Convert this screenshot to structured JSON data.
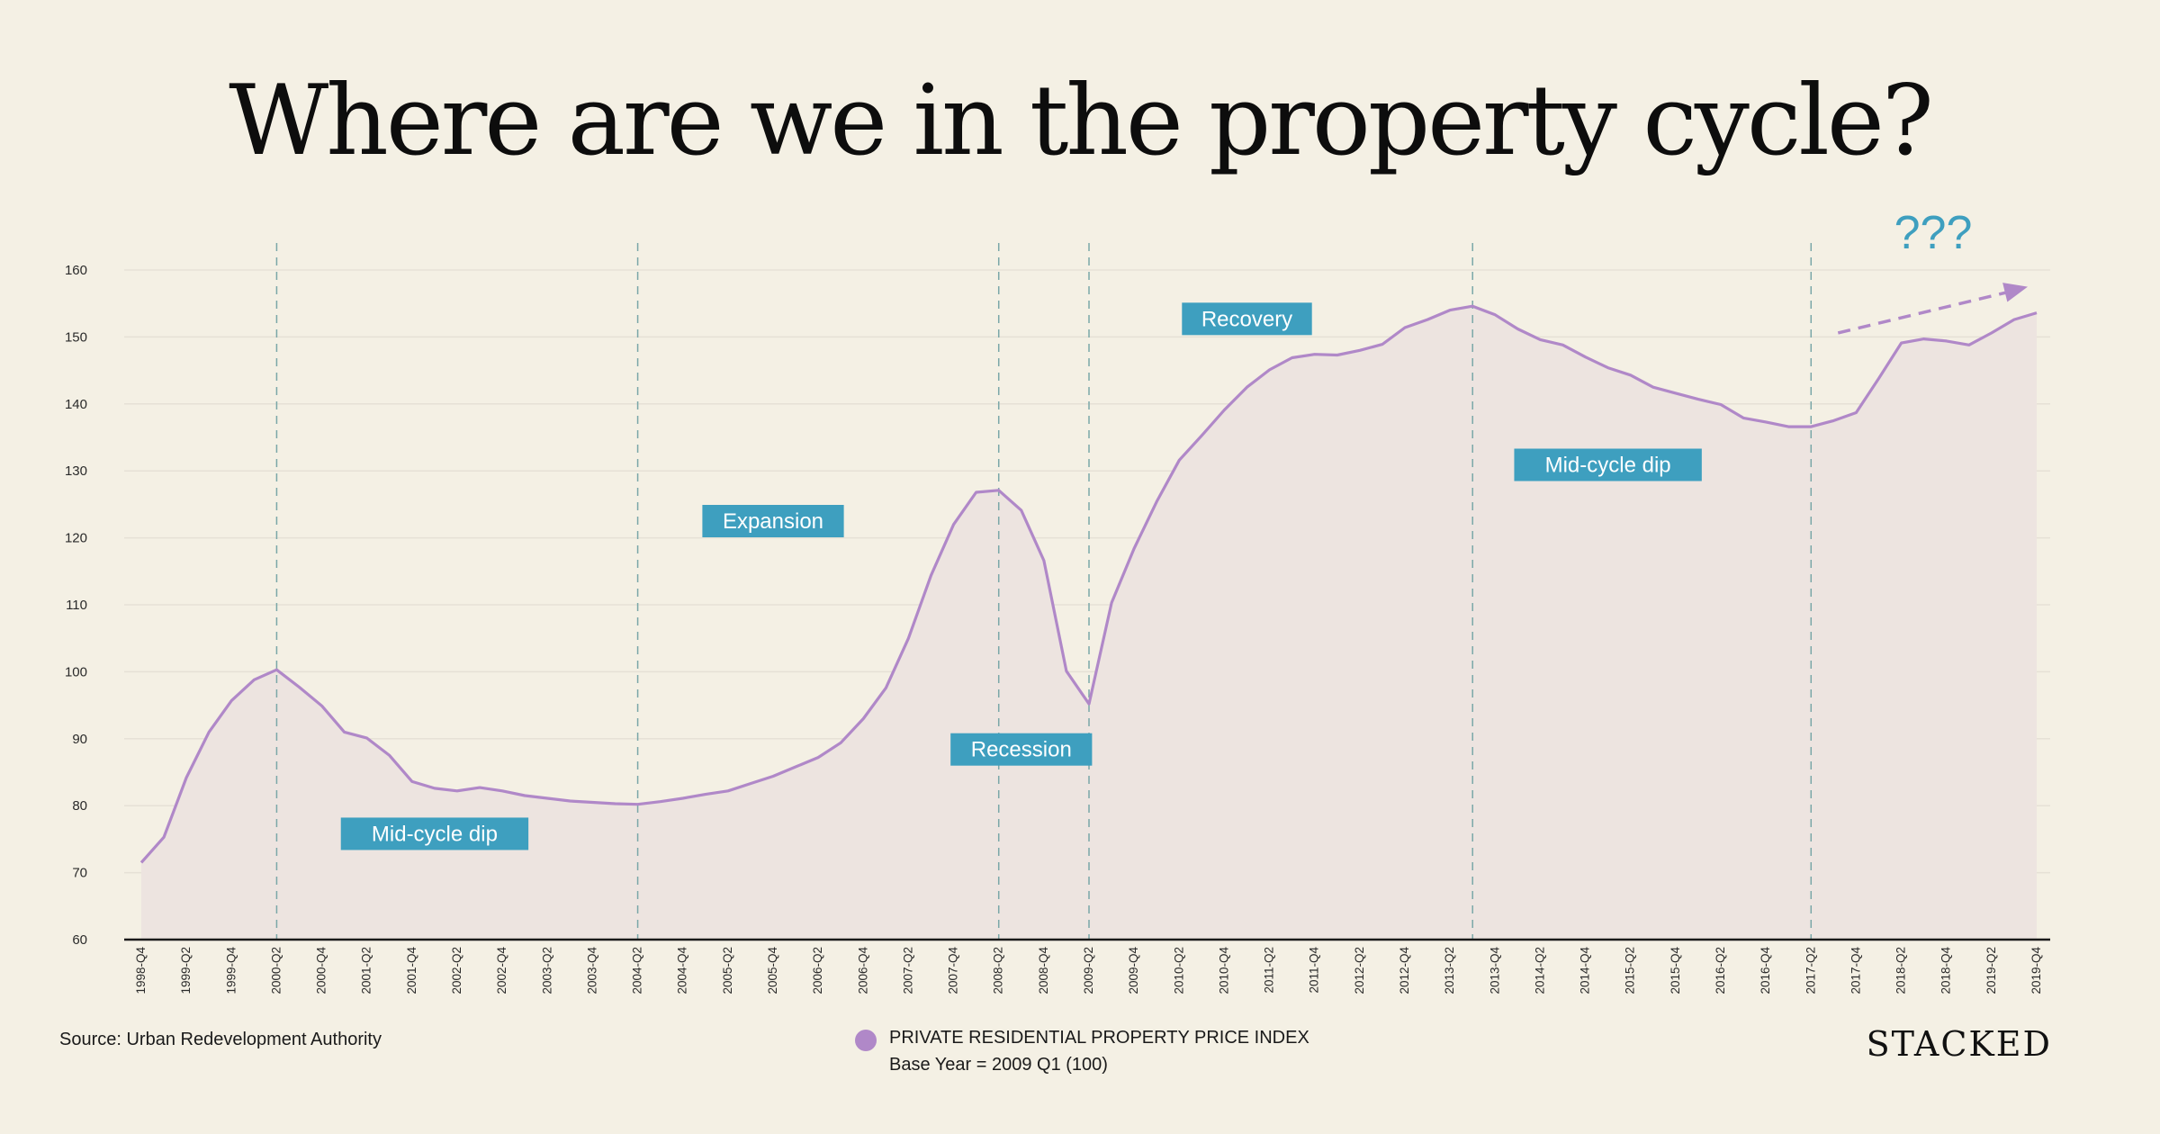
{
  "title": "Where are we in the property cycle?",
  "source": "Source: Urban Redevelopment Authority",
  "brand": "STACKED",
  "legend": {
    "label": "PRIVATE RESIDENTIAL PROPERTY PRICE INDEX",
    "base_year": "Base Year = 2009 Q1 (100)",
    "color": "#b088c8"
  },
  "colors": {
    "line": "#b088c8",
    "area_fill": "#ede4e0",
    "phase_box": "#3e9fbf",
    "divider": "#7aa7a8",
    "grid": "#e6e1d6",
    "background": "#f4f0e4"
  },
  "chart_data": {
    "type": "area",
    "ylim": [
      60,
      160
    ],
    "yticks": [
      60,
      70,
      80,
      90,
      100,
      110,
      120,
      130,
      140,
      150,
      160
    ],
    "grid": true,
    "xtick_labels": [
      "1998-Q4",
      "1999-Q2",
      "1999-Q4",
      "2000-Q2",
      "2000-Q4",
      "2001-Q2",
      "2001-Q4",
      "2002-Q2",
      "2002-Q4",
      "2003-Q2",
      "2003-Q4",
      "2004-Q2",
      "2004-Q4",
      "2005-Q2",
      "2005-Q4",
      "2006-Q2",
      "2006-Q4",
      "2007-Q2",
      "2007-Q4",
      "2008-Q2",
      "2008-Q4",
      "2009-Q2",
      "2009-Q4",
      "2010-Q2",
      "2010-Q4",
      "2011-Q2",
      "2011-Q4",
      "2012-Q2",
      "2012-Q4",
      "2013-Q2",
      "2013-Q4",
      "2014-Q2",
      "2014-Q4",
      "2015-Q2",
      "2015-Q4",
      "2016-Q2",
      "2016-Q4",
      "2017-Q2",
      "2017-Q4",
      "2018-Q2",
      "2018-Q4",
      "2019-Q2",
      "2019-Q4"
    ],
    "series": [
      {
        "x": [
          "1998-Q4",
          "1999-Q1",
          "1999-Q2",
          "1999-Q3",
          "1999-Q4",
          "2000-Q1",
          "2000-Q2",
          "2000-Q3",
          "2000-Q4",
          "2001-Q1",
          "2001-Q2",
          "2001-Q3",
          "2001-Q4",
          "2002-Q1",
          "2002-Q2",
          "2002-Q3",
          "2002-Q4",
          "2003-Q1",
          "2003-Q2",
          "2003-Q3",
          "2003-Q4",
          "2004-Q1",
          "2004-Q2",
          "2004-Q3",
          "2004-Q4",
          "2005-Q1",
          "2005-Q2",
          "2005-Q3",
          "2005-Q4",
          "2006-Q1",
          "2006-Q2",
          "2006-Q3",
          "2006-Q4",
          "2007-Q1",
          "2007-Q2",
          "2007-Q3",
          "2007-Q4",
          "2008-Q1",
          "2008-Q2",
          "2008-Q3",
          "2008-Q4",
          "2009-Q1",
          "2009-Q2",
          "2009-Q3",
          "2009-Q4",
          "2010-Q1",
          "2010-Q2",
          "2010-Q3",
          "2010-Q4",
          "2011-Q1",
          "2011-Q2",
          "2011-Q3",
          "2011-Q4",
          "2012-Q1",
          "2012-Q2",
          "2012-Q3",
          "2012-Q4",
          "2013-Q1",
          "2013-Q2",
          "2013-Q3",
          "2013-Q4",
          "2014-Q1",
          "2014-Q2",
          "2014-Q3",
          "2014-Q4",
          "2015-Q1",
          "2015-Q2",
          "2015-Q3",
          "2015-Q4",
          "2016-Q1",
          "2016-Q2",
          "2016-Q3",
          "2016-Q4",
          "2017-Q1",
          "2017-Q2",
          "2017-Q3",
          "2017-Q4",
          "2018-Q1",
          "2018-Q2",
          "2018-Q3",
          "2018-Q4",
          "2019-Q1",
          "2019-Q2",
          "2019-Q3",
          "2019-Q4"
        ],
        "values": [
          71.5,
          75.3,
          84.2,
          91.0,
          95.7,
          98.8,
          100.3,
          97.7,
          94.9,
          91.0,
          90.1,
          87.5,
          83.6,
          82.6,
          82.2,
          82.7,
          82.2,
          81.5,
          81.1,
          80.7,
          80.5,
          80.3,
          80.2,
          80.6,
          81.1,
          81.7,
          82.2,
          83.3,
          84.4,
          85.8,
          87.2,
          89.4,
          93.0,
          97.6,
          105.0,
          114.4,
          122.0,
          126.8,
          127.1,
          124.1,
          116.6,
          100.1,
          95.2,
          110.3,
          118.4,
          125.4,
          131.6,
          135.3,
          139.1,
          142.5,
          145.1,
          146.9,
          147.4,
          147.3,
          148.0,
          148.9,
          151.4,
          152.6,
          154.0,
          154.6,
          153.3,
          151.2,
          149.6,
          148.8,
          147.0,
          145.4,
          144.3,
          142.5,
          141.6,
          140.7,
          139.9,
          137.9,
          137.3,
          136.6,
          136.6,
          137.5,
          138.7,
          143.8,
          149.1,
          149.7,
          149.4,
          148.8,
          150.6,
          152.6,
          153.6
        ]
      }
    ],
    "dividers_at": [
      "2000-Q2",
      "2004-Q2",
      "2008-Q2",
      "2009-Q2",
      "2013-Q3",
      "2017-Q2"
    ],
    "phases": [
      {
        "label": "Mid-cycle dip",
        "at": "2002-Q1",
        "value": 75.8
      },
      {
        "label": "Expansion",
        "at": "2005-Q4",
        "value": 122.5
      },
      {
        "label": "Recession",
        "at": "2008-Q3",
        "value": 88.4
      },
      {
        "label": "Recovery",
        "at": "2011-Q1",
        "value": 152.7
      },
      {
        "label": "Mid-cycle dip",
        "at": "2015-Q1",
        "value": 130.9
      }
    ],
    "outlook": {
      "label": "???",
      "from_at": "2017-Q2",
      "from_value": 150.6,
      "to_at": "2019-Q4",
      "to_value": 157.5
    }
  }
}
